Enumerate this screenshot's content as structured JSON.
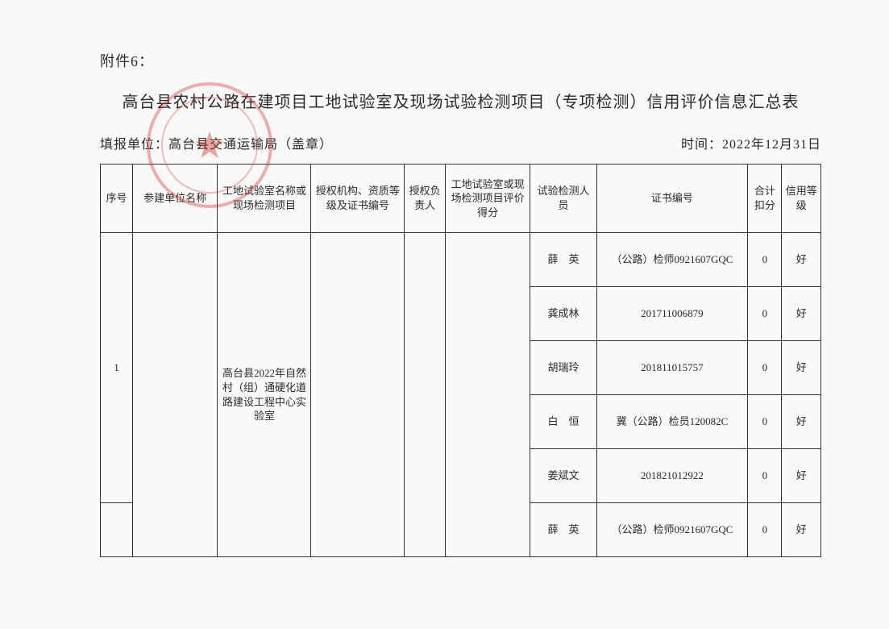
{
  "attachment_label": "附件6：",
  "title": "高台县农村公路在建项目工地试验室及现场试验检测项目（专项检测）信用评价信息汇总表",
  "reporting_unit_label": "填报单位：",
  "reporting_unit_value": "高台县交通运输局（盖章）",
  "time_label": "时间：",
  "time_value": "2022年12月31日",
  "columns": {
    "c1": "序号",
    "c2": "参建单位名称",
    "c3": "工地试验室名称或现场检测项目",
    "c4": "授权机构、资质等级及证书编号",
    "c5": "授权负责人",
    "c6": "工地试验室或现场检测项目评价得分",
    "c7": "试验检测人员",
    "c8": "证书编号",
    "c9": "合计扣分",
    "c10": "信用等级"
  },
  "group": {
    "seq": "1",
    "unit": "",
    "lab_name": "高台县2022年自然村（组）通硬化道路建设工程中心实验室",
    "auth_org": "",
    "auth_person": "",
    "eval_score": ""
  },
  "rows": [
    {
      "person": "薛　英",
      "cert": "（公路）检师0921607GQC",
      "deduct": "0",
      "grade": "好"
    },
    {
      "person": "龚成林",
      "cert": "201711006879",
      "deduct": "0",
      "grade": "好"
    },
    {
      "person": "胡瑞玲",
      "cert": "201811015757",
      "deduct": "0",
      "grade": "好"
    },
    {
      "person": "白　恒",
      "cert": "冀（公路）检员120082C",
      "deduct": "0",
      "grade": "好"
    },
    {
      "person": "姜斌文",
      "cert": "201821012922",
      "deduct": "0",
      "grade": "好"
    },
    {
      "person": "薛　英",
      "cert": "（公路）检师0921607GQC",
      "deduct": "0",
      "grade": "好"
    }
  ],
  "col_widths": {
    "c1": 38,
    "c2": 100,
    "c3": 110,
    "c4": 110,
    "c5": 48,
    "c6": 100,
    "c7": 78,
    "c8": 178,
    "c9": 40,
    "c10": 46
  }
}
